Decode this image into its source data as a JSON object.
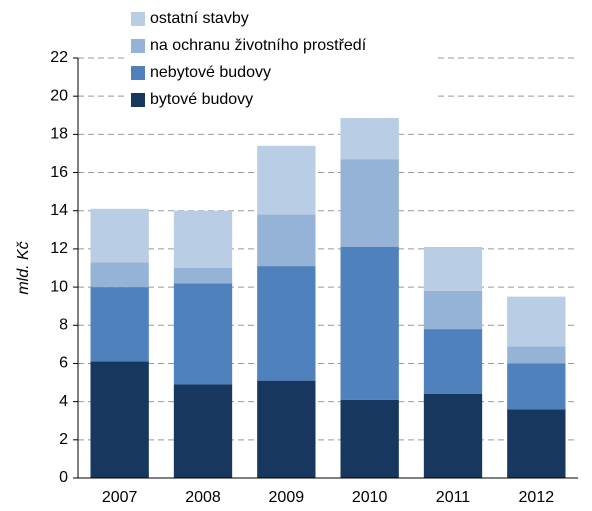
{
  "chart_data": {
    "type": "bar",
    "stacked": true,
    "ylabel": "mld. Kč",
    "categories": [
      "2007",
      "2008",
      "2009",
      "2010",
      "2011",
      "2012"
    ],
    "series": [
      {
        "name": "bytové budovy",
        "color": "#17375e",
        "values": [
          6.1,
          4.9,
          5.1,
          4.1,
          4.4,
          3.6
        ]
      },
      {
        "name": "nebytové budovy",
        "color": "#4f81bd",
        "values": [
          3.9,
          5.3,
          6.0,
          8.0,
          3.4,
          2.4
        ]
      },
      {
        "name": "na ochranu životního prostředí",
        "color": "#95b3d7",
        "values": [
          1.3,
          0.8,
          2.7,
          4.6,
          2.0,
          0.9
        ]
      },
      {
        "name": "ostatní stavby",
        "color": "#b9cde5",
        "values": [
          2.8,
          3.0,
          3.6,
          2.3,
          2.3,
          2.6
        ]
      }
    ],
    "ylim": [
      0,
      22
    ],
    "yticks": [
      0,
      2,
      4,
      6,
      8,
      10,
      12,
      14,
      16,
      18,
      20,
      22
    ],
    "grid": true,
    "legend": "upper left"
  }
}
